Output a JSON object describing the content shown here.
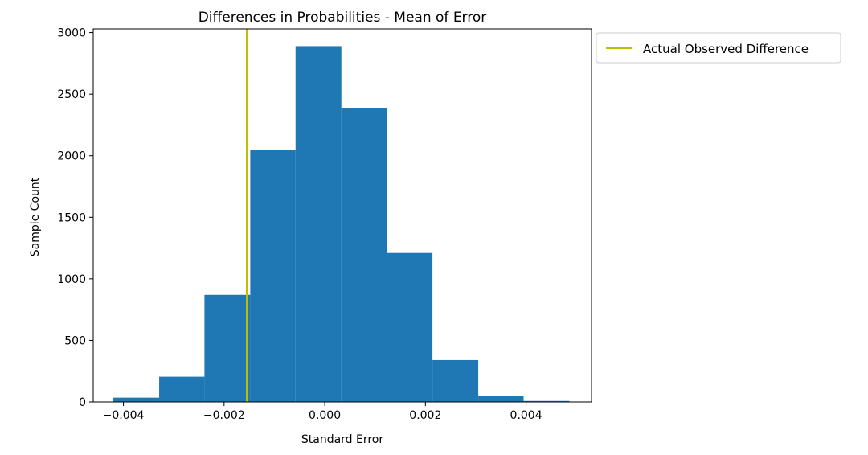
{
  "chart_data": {
    "type": "bar",
    "title": "Differences in Probabilities - Mean of Error",
    "xlabel": "Standard Error",
    "ylabel": "Sample Count",
    "xlim": [
      -0.0046,
      0.0053
    ],
    "ylim": [
      0,
      3030
    ],
    "x_ticks": [
      -0.004,
      -0.002,
      0.0,
      0.002,
      0.004
    ],
    "x_tick_labels": [
      "−0.004",
      "−0.002",
      "0.000",
      "0.002",
      "0.004"
    ],
    "y_ticks": [
      0,
      500,
      1000,
      1500,
      2000,
      2500,
      3000
    ],
    "y_tick_labels": [
      "0",
      "500",
      "1000",
      "1500",
      "2000",
      "2500",
      "3000"
    ],
    "bin_edges": [
      -0.0042,
      -0.00329,
      -0.00239,
      -0.00148,
      -0.00058,
      0.00033,
      0.00124,
      0.00214,
      0.00305,
      0.00395,
      0.00486
    ],
    "values": [
      35,
      205,
      870,
      2045,
      2890,
      2390,
      1210,
      340,
      50,
      8
    ],
    "bar_color": "#1f77b4",
    "vline": {
      "x": -0.00155,
      "label": "Actual Observed Difference",
      "color": "#bfbf00"
    },
    "legend": {
      "position": "outside-right",
      "entries": [
        "Actual Observed Difference"
      ]
    },
    "grid": false
  }
}
